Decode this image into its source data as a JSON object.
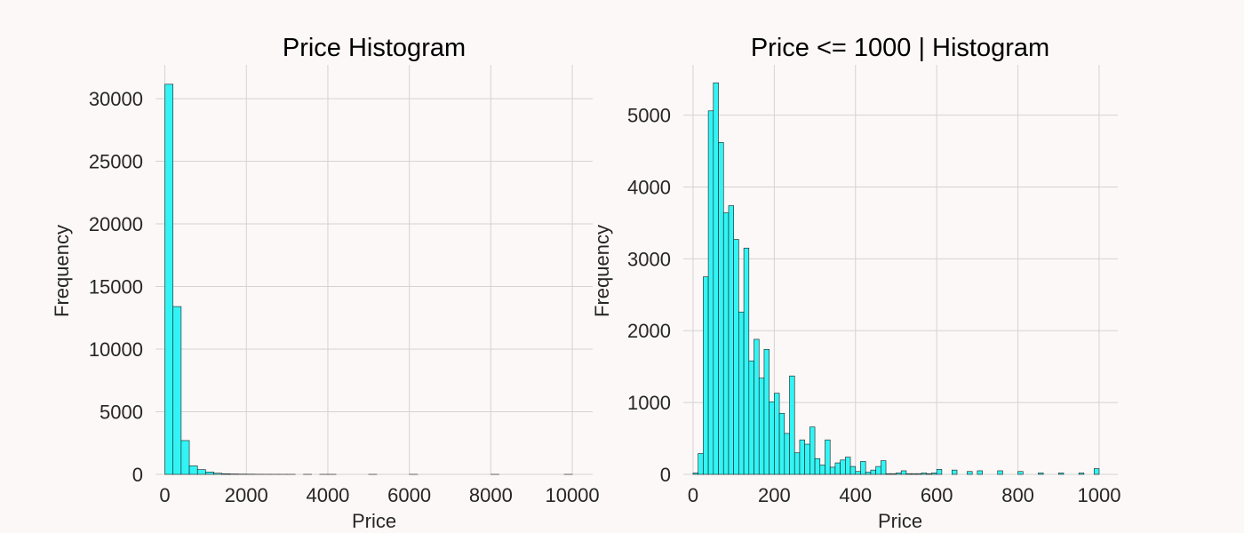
{
  "colors": {
    "background": "#fcf8f7",
    "bar_fill": "#33f4f4",
    "bar_edge": "#1a1a1a",
    "grid": "#d3d3d3"
  },
  "chart_data": [
    {
      "type": "bar",
      "title": "Price Histogram",
      "xlabel": "Price",
      "ylabel": "Frequency",
      "xlim": [
        -230,
        10500
      ],
      "ylim": [
        0,
        32700
      ],
      "xticks": [
        0,
        2000,
        4000,
        6000,
        8000,
        10000
      ],
      "yticks": [
        0,
        5000,
        10000,
        15000,
        20000,
        25000,
        30000
      ],
      "grid": true,
      "bin_width": 200,
      "bins": [
        {
          "x": 0,
          "value": 31150
        },
        {
          "x": 200,
          "value": 13400
        },
        {
          "x": 400,
          "value": 2700
        },
        {
          "x": 600,
          "value": 680
        },
        {
          "x": 800,
          "value": 380
        },
        {
          "x": 1000,
          "value": 190
        },
        {
          "x": 1200,
          "value": 90
        },
        {
          "x": 1400,
          "value": 50
        },
        {
          "x": 1600,
          "value": 30
        },
        {
          "x": 1800,
          "value": 20
        },
        {
          "x": 2000,
          "value": 15
        },
        {
          "x": 2200,
          "value": 8
        },
        {
          "x": 2400,
          "value": 5
        },
        {
          "x": 2600,
          "value": 4
        },
        {
          "x": 2800,
          "value": 3
        },
        {
          "x": 3000,
          "value": 3
        },
        {
          "x": 3400,
          "value": 2
        },
        {
          "x": 3800,
          "value": 1
        },
        {
          "x": 4000,
          "value": 2
        },
        {
          "x": 5000,
          "value": 1
        },
        {
          "x": 6000,
          "value": 1
        },
        {
          "x": 8000,
          "value": 1
        },
        {
          "x": 9800,
          "value": 1
        }
      ]
    },
    {
      "type": "bar",
      "title": "Price <= 1000 | Histogram",
      "xlabel": "Price",
      "ylabel": "Frequency",
      "xlim": [
        -24,
        1046
      ],
      "ylim": [
        0,
        5700
      ],
      "xticks": [
        0,
        200,
        400,
        600,
        800,
        1000
      ],
      "yticks": [
        0,
        1000,
        2000,
        3000,
        4000,
        5000
      ],
      "grid": true,
      "bin_width": 12.5,
      "bins": [
        {
          "x": 0,
          "value": 20
        },
        {
          "x": 12.5,
          "value": 290
        },
        {
          "x": 25,
          "value": 2750
        },
        {
          "x": 37.5,
          "value": 5060
        },
        {
          "x": 50,
          "value": 5450
        },
        {
          "x": 62.5,
          "value": 4620
        },
        {
          "x": 75,
          "value": 3640
        },
        {
          "x": 87.5,
          "value": 3740
        },
        {
          "x": 100,
          "value": 3270
        },
        {
          "x": 112.5,
          "value": 2260
        },
        {
          "x": 125,
          "value": 3150
        },
        {
          "x": 137.5,
          "value": 1580
        },
        {
          "x": 150,
          "value": 1880
        },
        {
          "x": 162.5,
          "value": 1340
        },
        {
          "x": 175,
          "value": 1740
        },
        {
          "x": 187.5,
          "value": 1010
        },
        {
          "x": 200,
          "value": 1130
        },
        {
          "x": 212.5,
          "value": 850
        },
        {
          "x": 225,
          "value": 570
        },
        {
          "x": 237.5,
          "value": 1370
        },
        {
          "x": 250,
          "value": 300
        },
        {
          "x": 262.5,
          "value": 480
        },
        {
          "x": 275,
          "value": 420
        },
        {
          "x": 287.5,
          "value": 660
        },
        {
          "x": 300,
          "value": 220
        },
        {
          "x": 312.5,
          "value": 130
        },
        {
          "x": 325,
          "value": 480
        },
        {
          "x": 337.5,
          "value": 100
        },
        {
          "x": 350,
          "value": 160
        },
        {
          "x": 362.5,
          "value": 200
        },
        {
          "x": 375,
          "value": 240
        },
        {
          "x": 387.5,
          "value": 110
        },
        {
          "x": 400,
          "value": 40
        },
        {
          "x": 412.5,
          "value": 180
        },
        {
          "x": 425,
          "value": 30
        },
        {
          "x": 437.5,
          "value": 60
        },
        {
          "x": 450,
          "value": 110
        },
        {
          "x": 462.5,
          "value": 190
        },
        {
          "x": 475,
          "value": 10
        },
        {
          "x": 487.5,
          "value": 10
        },
        {
          "x": 500,
          "value": 20
        },
        {
          "x": 512.5,
          "value": 50
        },
        {
          "x": 525,
          "value": 10
        },
        {
          "x": 537.5,
          "value": 10
        },
        {
          "x": 550,
          "value": 10
        },
        {
          "x": 562.5,
          "value": 20
        },
        {
          "x": 575,
          "value": 10
        },
        {
          "x": 587.5,
          "value": 20
        },
        {
          "x": 600,
          "value": 70
        },
        {
          "x": 637.5,
          "value": 60
        },
        {
          "x": 675,
          "value": 40
        },
        {
          "x": 700,
          "value": 50
        },
        {
          "x": 750,
          "value": 50
        },
        {
          "x": 800,
          "value": 40
        },
        {
          "x": 850,
          "value": 20
        },
        {
          "x": 900,
          "value": 20
        },
        {
          "x": 950,
          "value": 20
        },
        {
          "x": 987.5,
          "value": 80
        }
      ]
    }
  ]
}
